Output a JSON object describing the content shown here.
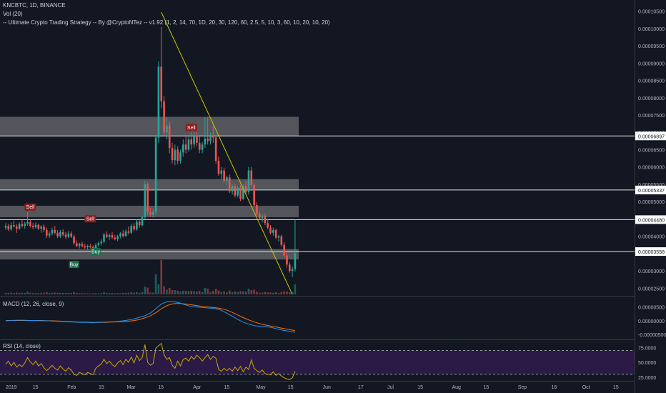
{
  "header": {
    "symbol_line": "KNCBTC, 1D, BINANCE",
    "vol_line": "Vol (20)",
    "strategy_line": "-- Ultimate Crypto Trading Strategy -- By @CryptoNTez -- v1.92 (1, 2, 14, 70, 1D, 20, 30, 120, 60, 2.5, 5, 10, 3, 60, 10, 20, 10, 20)"
  },
  "panes": {
    "macd_label": "MACD (12, 26, close, 9)",
    "rsi_label": "RSI (14, close)"
  },
  "colors": {
    "background": "#131722",
    "up": "#26a69a",
    "down": "#ef5350",
    "trendline": "#c8c800",
    "macd": "#2196f3",
    "signal": "#ff6d00",
    "rsi": "#c8a800",
    "rsi_band": "#2a1a45",
    "zone": "#8a8a8a",
    "sell_badge": "#8c1d1d",
    "buy_badge": "#1b6f4c"
  },
  "chart_data": {
    "type": "candlestick",
    "symbol": "KNCBTC",
    "interval": "1D",
    "exchange": "BINANCE",
    "price_axis_ticks": [
      "0.00010500",
      "0.00010000",
      "0.00009500",
      "0.00009000",
      "0.00008500",
      "0.00008000",
      "0.00007500",
      "0.00007000",
      "0.00006500",
      "0.00006000",
      "0.00005500",
      "0.00005000",
      "0.00004500",
      "0.00004000",
      "0.00003500",
      "0.00003000",
      "0.00002500"
    ],
    "price_ylim": [
      2.3e-05,
      0.000107
    ],
    "price_lines": [
      {
        "label": "0.00006897",
        "value": 6.897e-05
      },
      {
        "label": "0.00005337",
        "value": 5.337e-05
      },
      {
        "label": "0.00004480",
        "value": 4.48e-05
      },
      {
        "label": "0.00003558",
        "value": 3.558e-05
      }
    ],
    "zones": [
      {
        "low": 6.9e-05,
        "high": 7.45e-05
      },
      {
        "low": 5.35e-05,
        "high": 5.65e-05
      },
      {
        "low": 4.55e-05,
        "high": 4.88e-05
      },
      {
        "low": 3.33e-05,
        "high": 3.63e-05
      }
    ],
    "candles": [
      [
        4.25e-05,
        4.38e-05,
        4.18e-05,
        4.3e-05
      ],
      [
        4.3e-05,
        4.36e-05,
        4.15e-05,
        4.2e-05
      ],
      [
        4.2e-05,
        4.4e-05,
        4.15e-05,
        4.32e-05
      ],
      [
        4.32e-05,
        4.45e-05,
        4.25e-05,
        4.28e-05
      ],
      [
        4.28e-05,
        4.35e-05,
        4.1e-05,
        4.22e-05
      ],
      [
        4.22e-05,
        4.4e-05,
        4.18e-05,
        4.35e-05
      ],
      [
        4.35e-05,
        4.47e-05,
        4.25e-05,
        4.3e-05
      ],
      [
        4.3e-05,
        4.42e-05,
        4.22e-05,
        4.36e-05
      ],
      [
        4.36e-05,
        4.7e-05,
        4.3e-05,
        4.41e-05
      ],
      [
        4.41e-05,
        4.48e-05,
        4.25e-05,
        4.3e-05
      ],
      [
        4.3e-05,
        4.38e-05,
        4.2e-05,
        4.26e-05
      ],
      [
        4.26e-05,
        4.4e-05,
        4.22e-05,
        4.33e-05
      ],
      [
        4.33e-05,
        4.37e-05,
        4.18e-05,
        4.22e-05
      ],
      [
        4.22e-05,
        4.32e-05,
        4.1e-05,
        4.28e-05
      ],
      [
        4.28e-05,
        4.34e-05,
        4.12e-05,
        4.18e-05
      ],
      [
        4.18e-05,
        4.25e-05,
        3.95e-05,
        4.02e-05
      ],
      [
        4.02e-05,
        4.15e-05,
        3.95e-05,
        4.08e-05
      ],
      [
        4.08e-05,
        4.25e-05,
        4.02e-05,
        4.18e-05
      ],
      [
        4.18e-05,
        4.3e-05,
        4.05e-05,
        4.1e-05
      ],
      [
        4.1e-05,
        4.18e-05,
        3.95e-05,
        4e-05
      ],
      [
        4e-05,
        4.18e-05,
        3.95e-05,
        4.12e-05
      ],
      [
        4.12e-05,
        4.2e-05,
        4e-05,
        4.05e-05
      ],
      [
        4.05e-05,
        4.12e-05,
        3.92e-05,
        3.98e-05
      ],
      [
        3.98e-05,
        4.15e-05,
        3.94e-05,
        4.08e-05
      ],
      [
        4.08e-05,
        4.14e-05,
        3.95e-05,
        3.99e-05
      ],
      [
        3.99e-05,
        4.05e-05,
        3.75e-05,
        3.8e-05
      ],
      [
        3.8e-05,
        3.88e-05,
        3.68e-05,
        3.72e-05
      ],
      [
        3.72e-05,
        3.82e-05,
        3.65e-05,
        3.78e-05
      ],
      [
        3.78e-05,
        3.84e-05,
        3.68e-05,
        3.71e-05
      ],
      [
        3.71e-05,
        3.78e-05,
        3.64e-05,
        3.68e-05
      ],
      [
        3.68e-05,
        3.76e-05,
        3.62e-05,
        3.72e-05
      ],
      [
        3.72e-05,
        3.78e-05,
        3.65e-05,
        3.69e-05
      ],
      [
        3.69e-05,
        3.74e-05,
        3.6e-05,
        3.66e-05
      ],
      [
        3.66e-05,
        3.8e-05,
        3.62e-05,
        3.75e-05
      ],
      [
        3.75e-05,
        3.85e-05,
        3.7e-05,
        3.8e-05
      ],
      [
        3.8e-05,
        3.92e-05,
        3.74e-05,
        3.84e-05
      ],
      [
        3.84e-05,
        4.1e-05,
        3.8e-05,
        4.05e-05
      ],
      [
        4.05e-05,
        4.14e-05,
        3.95e-05,
        3.98e-05
      ],
      [
        3.98e-05,
        4.08e-05,
        3.9e-05,
        4.03e-05
      ],
      [
        4.03e-05,
        4.12e-05,
        3.92e-05,
        3.96e-05
      ],
      [
        3.96e-05,
        4.04e-05,
        3.88e-05,
        3.92e-05
      ],
      [
        3.92e-05,
        4.04e-05,
        3.86e-05,
        4e-05
      ],
      [
        4e-05,
        4.12e-05,
        3.94e-05,
        4.08e-05
      ],
      [
        4.08e-05,
        4.18e-05,
        3.96e-05,
        4.01e-05
      ],
      [
        4.01e-05,
        4.2e-05,
        3.98e-05,
        4.14e-05
      ],
      [
        4.14e-05,
        4.28e-05,
        4.05e-05,
        4.1e-05
      ],
      [
        4.1e-05,
        4.36e-05,
        4.06e-05,
        4.3e-05
      ],
      [
        4.3e-05,
        4.38e-05,
        4.15e-05,
        4.2e-05
      ],
      [
        4.2e-05,
        4.48e-05,
        4.16e-05,
        4.42e-05
      ],
      [
        4.42e-05,
        4.46e-05,
        4.25e-05,
        4.32e-05
      ],
      [
        4.32e-05,
        4.6e-05,
        4.28e-05,
        4.55e-05
      ],
      [
        4.55e-05,
        5.6e-05,
        4.5e-05,
        5.5e-05
      ],
      [
        5.5e-05,
        5.56e-05,
        4.6e-05,
        4.7e-05
      ],
      [
        4.7e-05,
        4.82e-05,
        4.55e-05,
        4.62e-05
      ],
      [
        4.62e-05,
        4.78e-05,
        4.54e-05,
        4.7e-05
      ],
      [
        4.7e-05,
        6.92e-05,
        4.62e-05,
        6.85e-05
      ],
      [
        6.85e-05,
        9.05e-05,
        6.7e-05,
        8.9e-05
      ],
      [
        8.9e-05,
        0.0001005,
        7.7e-05,
        7.9e-05
      ],
      [
        7.9e-05,
        8.05e-05,
        6.9e-05,
        7e-05
      ],
      [
        7e-05,
        7.45e-05,
        6.8e-05,
        7.2e-05
      ],
      [
        7.2e-05,
        7.3e-05,
        6.4e-05,
        6.55e-05
      ],
      [
        6.55e-05,
        6.7e-05,
        6.1e-05,
        6.2e-05
      ],
      [
        6.2e-05,
        6.65e-05,
        6.05e-05,
        6.5e-05
      ],
      [
        6.5e-05,
        6.6e-05,
        6.08e-05,
        6.18e-05
      ],
      [
        6.18e-05,
        6.5e-05,
        6.1e-05,
        6.42e-05
      ],
      [
        6.42e-05,
        6.8e-05,
        6.3e-05,
        6.65e-05
      ],
      [
        6.65e-05,
        6.9e-05,
        6.4e-05,
        6.5e-05
      ],
      [
        6.5e-05,
        6.9e-05,
        6.45e-05,
        6.8e-05
      ],
      [
        6.8e-05,
        7e-05,
        6.5e-05,
        6.65e-05
      ],
      [
        6.65e-05,
        7e-05,
        6.55e-05,
        6.9e-05
      ],
      [
        6.9e-05,
        7e-05,
        6.6e-05,
        6.7e-05
      ],
      [
        6.7e-05,
        6.9e-05,
        6.4e-05,
        6.5e-05
      ],
      [
        6.5e-05,
        6.72e-05,
        6.4e-05,
        6.65e-05
      ],
      [
        6.65e-05,
        7.45e-05,
        6.55e-05,
        6.82e-05
      ],
      [
        6.82e-05,
        7.45e-05,
        6.65e-05,
        6.75e-05
      ],
      [
        6.75e-05,
        7e-05,
        6.65e-05,
        6.92e-05
      ],
      [
        6.92e-05,
        7.2e-05,
        6.7e-05,
        6.85e-05
      ],
      [
        6.85e-05,
        6.9e-05,
        6.1e-05,
        6.18e-05
      ],
      [
        6.18e-05,
        6.3e-05,
        5.75e-05,
        5.8e-05
      ],
      [
        5.8e-05,
        6e-05,
        5.65e-05,
        5.9e-05
      ],
      [
        5.9e-05,
        5.98e-05,
        5.55e-05,
        5.6e-05
      ],
      [
        5.6e-05,
        5.75e-05,
        5.48e-05,
        5.7e-05
      ],
      [
        5.7e-05,
        5.78e-05,
        5.25e-05,
        5.3e-05
      ],
      [
        5.3e-05,
        5.5e-05,
        5.2e-05,
        5.45e-05
      ],
      [
        5.45e-05,
        5.52e-05,
        5.12e-05,
        5.18e-05
      ],
      [
        5.18e-05,
        5.45e-05,
        5.12e-05,
        5.4e-05
      ],
      [
        5.4e-05,
        5.48e-05,
        5.02e-05,
        5.08e-05
      ],
      [
        5.08e-05,
        5.5e-05,
        5.05e-05,
        5.45e-05
      ],
      [
        5.45e-05,
        5.6e-05,
        5.2e-05,
        5.28e-05
      ],
      [
        5.28e-05,
        6e-05,
        5.2e-05,
        5.9e-05
      ],
      [
        5.9e-05,
        6e-05,
        5.4e-05,
        5.48e-05
      ],
      [
        5.48e-05,
        5.52e-05,
        4.85e-05,
        4.9e-05
      ],
      [
        4.9e-05,
        4.98e-05,
        4.6e-05,
        4.65e-05
      ],
      [
        4.65e-05,
        4.72e-05,
        4.48e-05,
        4.52e-05
      ],
      [
        4.52e-05,
        4.65e-05,
        4.4e-05,
        4.58e-05
      ],
      [
        4.58e-05,
        4.65e-05,
        4.32e-05,
        4.38e-05
      ],
      [
        4.38e-05,
        4.48e-05,
        4.2e-05,
        4.25e-05
      ],
      [
        4.25e-05,
        4.32e-05,
        4.05e-05,
        4.1e-05
      ],
      [
        4.1e-05,
        4.25e-05,
        4.02e-05,
        4.18e-05
      ],
      [
        4.18e-05,
        4.22e-05,
        3.92e-05,
        3.96e-05
      ],
      [
        3.96e-05,
        4.05e-05,
        3.85e-05,
        4e-05
      ],
      [
        4e-05,
        4.04e-05,
        3.7e-05,
        3.75e-05
      ],
      [
        3.75e-05,
        3.82e-05,
        3.4e-05,
        3.45e-05
      ],
      [
        3.45e-05,
        3.52e-05,
        3.1e-05,
        3.18e-05
      ],
      [
        3.18e-05,
        3.25e-05,
        2.95e-05,
        3e-05
      ],
      [
        3e-05,
        3.12e-05,
        2.82e-05,
        3.05e-05
      ],
      [
        3.05e-05,
        4.48e-05,
        2.98e-05,
        3.5e-05
      ]
    ],
    "volume_max_index": 57,
    "signals": [
      {
        "label": "Sell",
        "index": 9,
        "value": 4.7e-05
      },
      {
        "label": "Sell",
        "index": 31,
        "value": 4.36e-05
      },
      {
        "label": "Buy",
        "index": 33,
        "value": 3.7e-05
      },
      {
        "label": "Buy",
        "index": 25,
        "value": 3.33e-05
      },
      {
        "label": "Sell",
        "index": 68,
        "value": 7e-05
      }
    ],
    "trendline": {
      "from": [
        57,
        0.0001047
      ],
      "to": [
        105,
        2.32e-05
      ]
    },
    "macd": {
      "ticks": [
        "0.00000500",
        "0.00000000",
        "-0.00000500"
      ],
      "ylim": [
        -6.5e-06,
        8e-06
      ],
      "macd_values": [
        0.0,
        1e-07,
        2e-07,
        2e-07,
        1e-07,
        1e-07,
        0.0,
        0.0,
        -1e-07,
        -2e-07,
        -3e-07,
        -4e-07,
        -5e-07,
        -6e-07,
        -6e-07,
        -7e-07,
        -6e-07,
        -5e-07,
        -4e-07,
        -3e-07,
        -1e-07,
        2e-07,
        6e-07,
        1.2e-06,
        1.8e-06,
        2.8e-06,
        4.5e-06,
        6.2e-06,
        7e-06,
        6.9e-06,
        6.5e-06,
        5.8e-06,
        5.2e-06,
        5e-06,
        4.8e-06,
        4.6e-06,
        4.5e-06,
        4e-06,
        3e-06,
        1.8e-06,
        6e-07,
        -5e-07,
        -1.2e-06,
        -1.8e-06,
        -2e-06,
        -2.1e-06,
        -2.5e-06,
        -3e-06,
        -3.5e-06,
        -3.8e-06,
        -4.2e-06
      ],
      "signal_values": [
        1e-07,
        1e-07,
        1e-07,
        1e-07,
        1e-07,
        1e-07,
        1e-07,
        0.0,
        0.0,
        -1e-07,
        -2e-07,
        -3e-07,
        -4e-07,
        -5e-07,
        -5e-07,
        -6e-07,
        -6e-07,
        -6e-07,
        -5e-07,
        -4e-07,
        -3e-07,
        -2e-07,
        0.0,
        4e-07,
        1e-06,
        1.8e-06,
        3e-06,
        4.5e-06,
        5.6e-06,
        6.2e-06,
        6.3e-06,
        6.1e-06,
        5.8e-06,
        5.5e-06,
        5.2e-06,
        5e-06,
        4.8e-06,
        4.5e-06,
        4e-06,
        3.2e-06,
        2.2e-06,
        1.2e-06,
        3e-07,
        -5e-07,
        -1.1e-06,
        -1.6e-06,
        -2e-06,
        -2.4e-06,
        -2.8e-06,
        -3.2e-06,
        -3.6e-06
      ]
    },
    "rsi": {
      "ticks": [
        "75.0000",
        "50.0000",
        "25.0000"
      ],
      "ylim": [
        20,
        85
      ],
      "bands": [
        70,
        30
      ],
      "values": [
        47,
        52,
        44,
        50,
        42,
        46,
        43,
        49,
        58,
        51,
        46,
        52,
        44,
        48,
        41,
        36,
        40,
        45,
        40,
        37,
        44,
        39,
        35,
        41,
        37,
        30,
        28,
        33,
        31,
        29,
        33,
        31,
        29,
        40,
        44,
        47,
        55,
        48,
        52,
        46,
        43,
        49,
        53,
        46,
        55,
        50,
        59,
        49,
        62,
        53,
        58,
        80,
        50,
        45,
        48,
        74,
        78,
        82,
        63,
        55,
        58,
        45,
        40,
        52,
        44,
        55,
        57,
        52,
        60,
        55,
        62,
        58,
        52,
        58,
        63,
        55,
        60,
        57,
        38,
        35,
        40,
        36,
        40,
        35,
        42,
        36,
        43,
        34,
        42,
        38,
        54,
        40,
        36,
        33,
        37,
        31,
        30,
        29,
        34,
        28,
        31,
        27,
        24,
        22,
        21,
        24,
        35
      ]
    },
    "x_axis": {
      "labels": [
        "2019",
        "15",
        "Feb",
        "15",
        "Mar",
        "15",
        "Apr",
        "15",
        "May",
        "15",
        "Jun",
        "17",
        "Jul",
        "15",
        "Aug",
        "15",
        "Sep",
        "16",
        "Oct",
        "15"
      ],
      "label_day_index": [
        0,
        14,
        31,
        45,
        59,
        73,
        90,
        104,
        120,
        134,
        151,
        167,
        181,
        195,
        212,
        226,
        243,
        258,
        273,
        287
      ]
    }
  }
}
